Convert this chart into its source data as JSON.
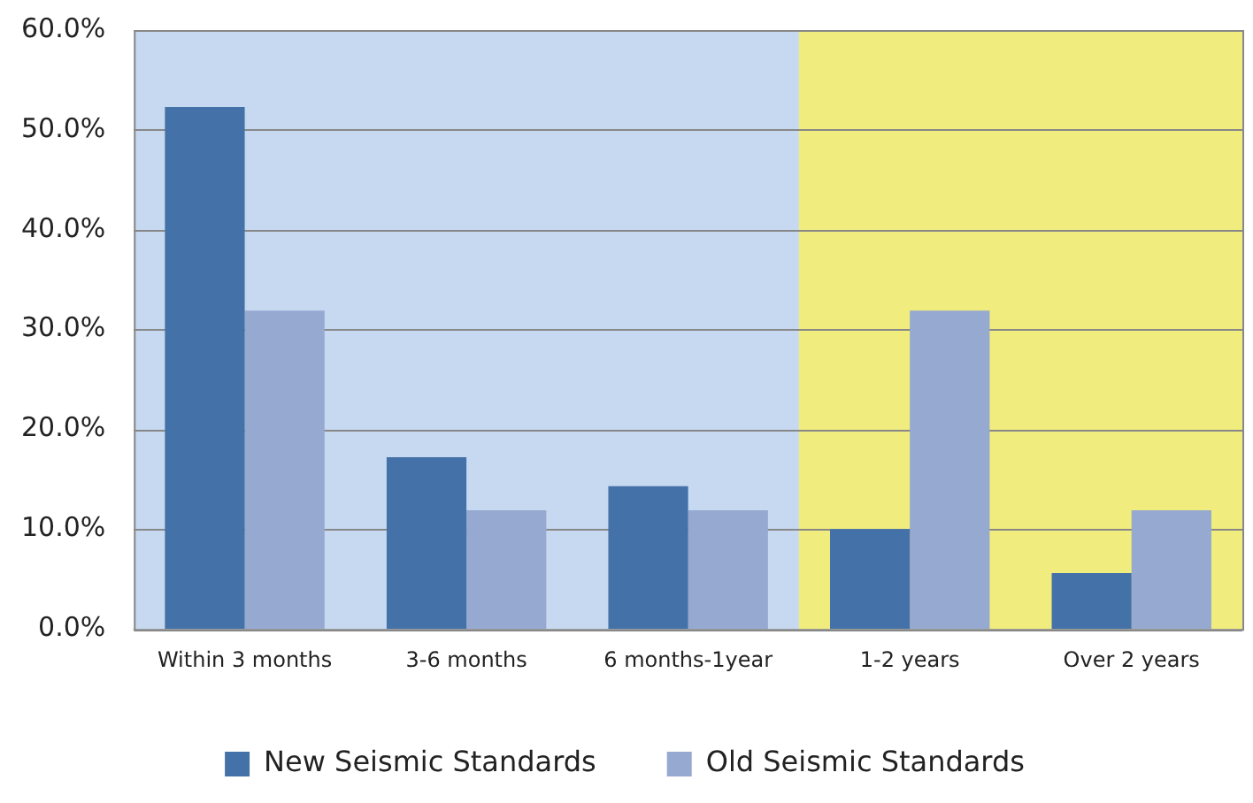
{
  "chart_data": {
    "type": "bar",
    "categories": [
      "Within 3 months",
      "3-6 months",
      "6 months-1year",
      "1-2 years",
      "Over 2 years"
    ],
    "series": [
      {
        "name": "New Seismic Standards",
        "color": "#4472a8",
        "values": [
          52.3,
          17.2,
          14.3,
          10.0,
          5.6
        ]
      },
      {
        "name": "Old Seismic Standards",
        "color": "#95a9d1",
        "values": [
          31.9,
          11.9,
          11.9,
          31.9,
          11.9
        ]
      }
    ],
    "ylim": [
      0,
      60
    ],
    "yticks": [
      {
        "value": 0,
        "label": "0.0%"
      },
      {
        "value": 10,
        "label": "10.0%"
      },
      {
        "value": 20,
        "label": "20.0%"
      },
      {
        "value": 30,
        "label": "30.0%"
      },
      {
        "value": 40,
        "label": "40.0%"
      },
      {
        "value": 50,
        "label": "50.0%"
      },
      {
        "value": 60,
        "label": "60.0%"
      }
    ],
    "bands": [
      {
        "axis": "x",
        "from": "Within 3 months",
        "to": "6 months-1year",
        "color": "#c6d9f1"
      },
      {
        "axis": "x",
        "from": "1-2 years",
        "to": "Over 2 years",
        "color": "#f0ec7e"
      }
    ],
    "grid": "y",
    "legend": "bottom"
  }
}
